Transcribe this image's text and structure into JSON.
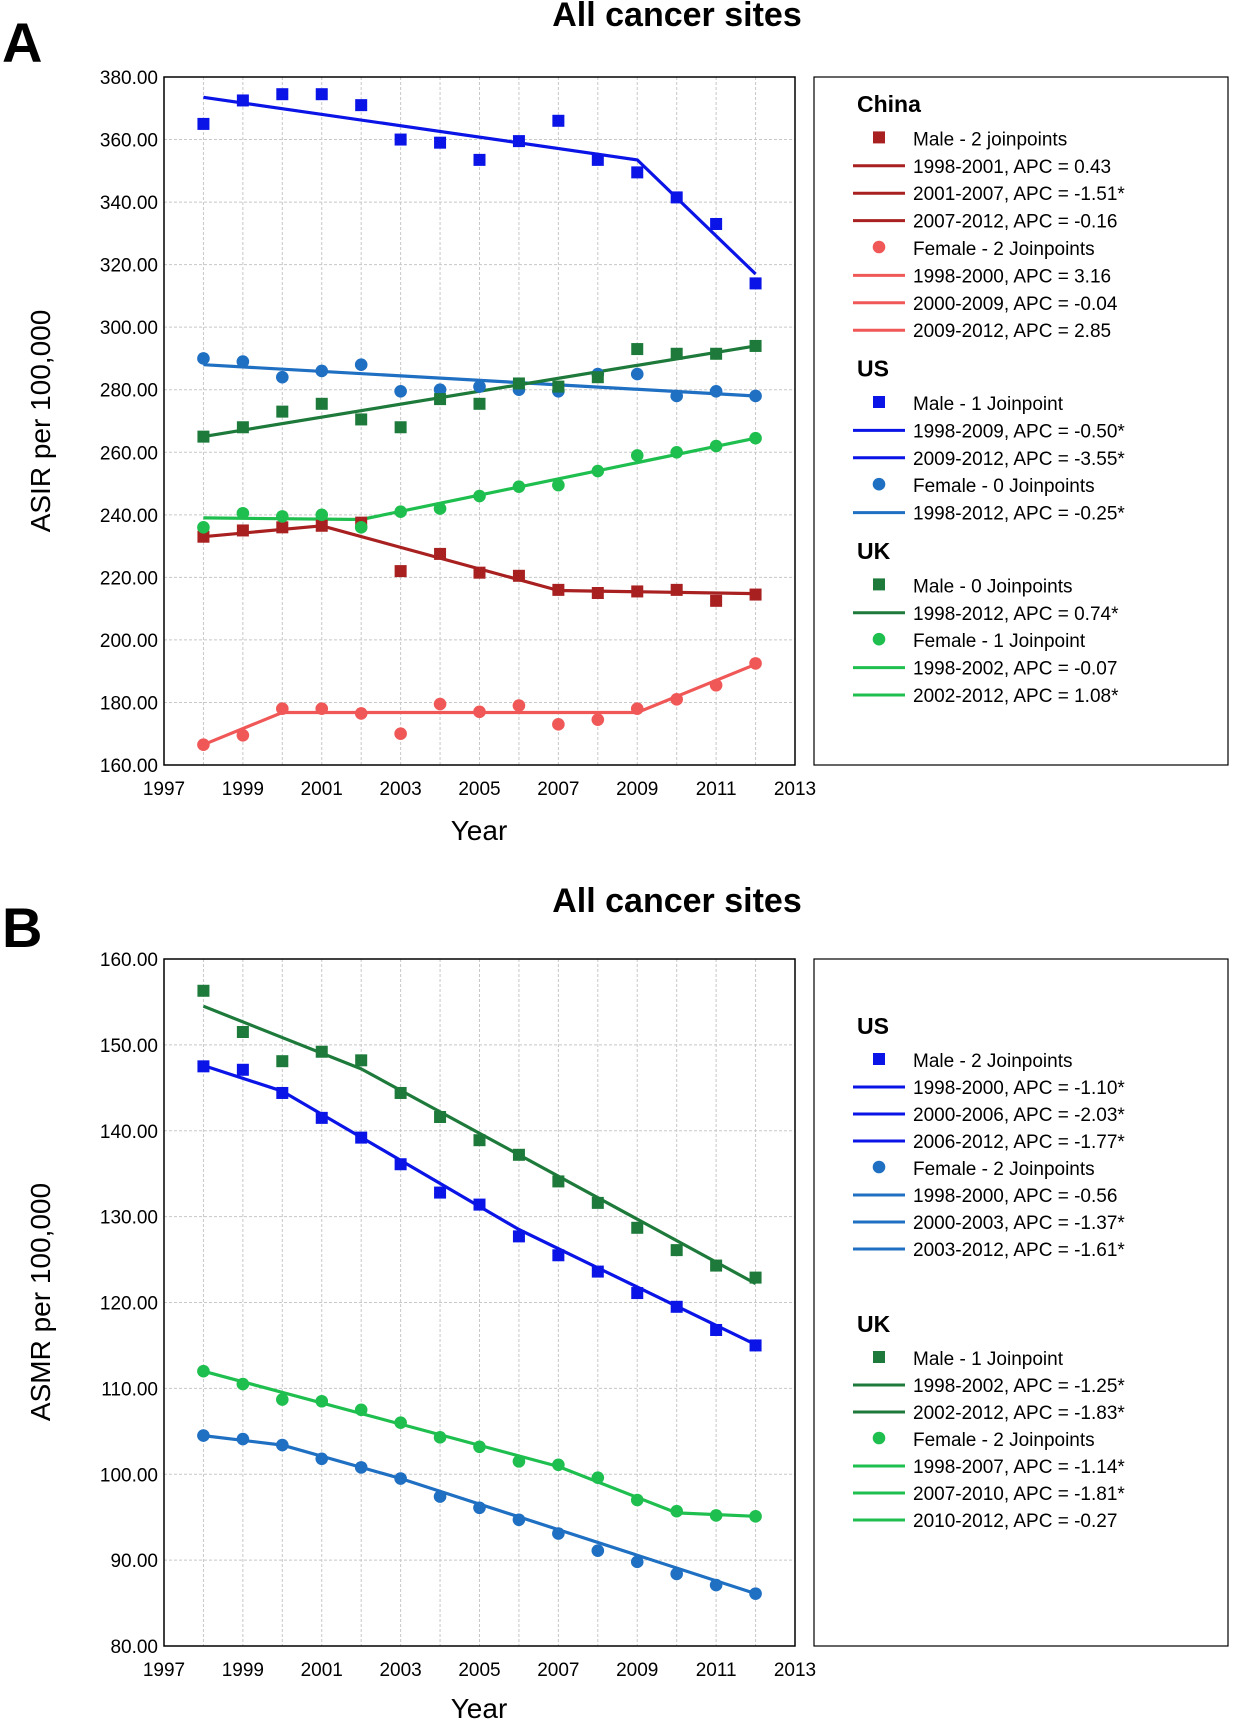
{
  "colors": {
    "china_male": "#a82020",
    "china_female": "#f05858",
    "us_male": "#0a14e6",
    "us_female": "#1f6fc2",
    "uk_male": "#1d7a3a",
    "uk_female": "#1fbf4f",
    "grid": "#c8c8c8"
  },
  "chart_data": [
    {
      "panel": "A",
      "type": "scatter",
      "title": "All cancer sites",
      "xlabel": "Year",
      "ylabel": "ASIR per 100,000",
      "xlim": [
        1997,
        2013
      ],
      "ylim": [
        160,
        380
      ],
      "x_ticks": [
        "1997",
        "1999",
        "2001",
        "2003",
        "2005",
        "2007",
        "2009",
        "2011",
        "2013"
      ],
      "y_ticks": [
        "160.00",
        "180.00",
        "200.00",
        "220.00",
        "240.00",
        "260.00",
        "280.00",
        "300.00",
        "320.00",
        "340.00",
        "360.00",
        "380.00"
      ],
      "grid": true,
      "legend_placement": "right",
      "x": [
        1998,
        1999,
        2000,
        2001,
        2002,
        2003,
        2004,
        2005,
        2006,
        2007,
        2008,
        2009,
        2010,
        2011,
        2012
      ],
      "series": [
        {
          "key": "china_male",
          "marker": "square",
          "values": [
            233,
            235,
            236,
            236.5,
            237.5,
            222,
            227.5,
            221.5,
            220.5,
            216,
            215,
            215.5,
            216,
            212.5,
            214.5
          ],
          "fit": [
            [
              1998,
              233
            ],
            [
              2001,
              236.5
            ],
            [
              2007,
              215.8
            ],
            [
              2012,
              214.8
            ]
          ]
        },
        {
          "key": "china_female",
          "marker": "circle",
          "values": [
            166.5,
            169.5,
            178,
            178,
            176.5,
            170,
            179.5,
            177,
            179,
            173,
            174.5,
            178,
            181,
            185.5,
            192.5
          ],
          "fit": [
            [
              1998,
              166.5
            ],
            [
              2000,
              176.8
            ],
            [
              2009,
              176.8
            ],
            [
              2012,
              192.2
            ]
          ]
        },
        {
          "key": "us_male",
          "marker": "square",
          "values": [
            365,
            372.5,
            374.5,
            374.5,
            371,
            360,
            359,
            353.5,
            359.5,
            366,
            353.5,
            349.5,
            341.5,
            333,
            314
          ],
          "fit": [
            [
              1998,
              373.5
            ],
            [
              2009,
              353.5
            ],
            [
              2012,
              317
            ]
          ]
        },
        {
          "key": "us_female",
          "marker": "circle",
          "values": [
            290,
            289,
            284,
            286,
            288,
            279.5,
            280,
            281,
            280,
            279.5,
            285,
            285,
            278,
            279.5,
            278
          ],
          "fit": [
            [
              1998,
              288
            ],
            [
              2012,
              278
            ]
          ]
        },
        {
          "key": "uk_male",
          "marker": "square",
          "values": [
            265,
            268,
            273,
            275.5,
            270.5,
            268,
            277,
            275.5,
            282,
            281,
            284,
            293,
            291.5,
            291.5,
            294
          ],
          "fit": [
            [
              1998,
              265
            ],
            [
              2012,
              294
            ]
          ]
        },
        {
          "key": "uk_female",
          "marker": "circle",
          "values": [
            236,
            240.5,
            239.5,
            240,
            236,
            241,
            242,
            246,
            249,
            249.5,
            254,
            259,
            260,
            262,
            264.5
          ],
          "fit": [
            [
              1998,
              239
            ],
            [
              2002,
              238.5
            ],
            [
              2012,
              264.5
            ]
          ]
        }
      ],
      "legend": [
        {
          "kind": "head",
          "text": "China"
        },
        {
          "kind": "square",
          "color": "china_male",
          "text": "Male - 2 joinpoints"
        },
        {
          "kind": "line",
          "color": "china_male",
          "text": "1998-2001, APC = 0.43"
        },
        {
          "kind": "line",
          "color": "china_male",
          "text": "2001-2007, APC = -1.51*"
        },
        {
          "kind": "line",
          "color": "china_male",
          "text": "2007-2012, APC = -0.16"
        },
        {
          "kind": "circle",
          "color": "china_female",
          "text": "Female - 2 Joinpoints"
        },
        {
          "kind": "line",
          "color": "china_female",
          "text": "1998-2000, APC = 3.16"
        },
        {
          "kind": "line",
          "color": "china_female",
          "text": "2000-2009, APC = -0.04"
        },
        {
          "kind": "line",
          "color": "china_female",
          "text": "2009-2012, APC = 2.85"
        },
        {
          "kind": "head",
          "text": "US"
        },
        {
          "kind": "square",
          "color": "us_male",
          "text": "Male - 1 Joinpoint"
        },
        {
          "kind": "line",
          "color": "us_male",
          "text": "1998-2009, APC = -0.50*"
        },
        {
          "kind": "line",
          "color": "us_male",
          "text": "2009-2012, APC = -3.55*"
        },
        {
          "kind": "circle",
          "color": "us_female",
          "text": "Female - 0 Joinpoints"
        },
        {
          "kind": "line",
          "color": "us_female",
          "text": "1998-2012, APC = -0.25*"
        },
        {
          "kind": "head",
          "text": "UK"
        },
        {
          "kind": "square",
          "color": "uk_male",
          "text": "Male - 0 Joinpoints"
        },
        {
          "kind": "line",
          "color": "uk_male",
          "text": "1998-2012, APC = 0.74*"
        },
        {
          "kind": "circle",
          "color": "uk_female",
          "text": "Female - 1 Joinpoint"
        },
        {
          "kind": "line",
          "color": "uk_female",
          "text": "1998-2002, APC = -0.07"
        },
        {
          "kind": "line",
          "color": "uk_female",
          "text": "2002-2012, APC = 1.08*"
        }
      ]
    },
    {
      "panel": "B",
      "type": "scatter",
      "title": "All cancer sites",
      "xlabel": "Year",
      "ylabel": "ASMR per 100,000",
      "xlim": [
        1997,
        2013
      ],
      "ylim": [
        80,
        160
      ],
      "x_ticks": [
        "1997",
        "1999",
        "2001",
        "2003",
        "2005",
        "2007",
        "2009",
        "2011",
        "2013"
      ],
      "y_ticks": [
        "80.00",
        "90.00",
        "100.00",
        "110.00",
        "120.00",
        "130.00",
        "140.00",
        "150.00",
        "160.00"
      ],
      "grid": true,
      "legend_placement": "right",
      "x": [
        1998,
        1999,
        2000,
        2001,
        2002,
        2003,
        2004,
        2005,
        2006,
        2007,
        2008,
        2009,
        2010,
        2011,
        2012
      ],
      "series": [
        {
          "key": "uk_male",
          "marker": "square",
          "values": [
            156.3,
            151.5,
            148.1,
            149.2,
            148.2,
            144.4,
            141.6,
            138.9,
            137.2,
            134.1,
            131.6,
            128.7,
            126.1,
            124.3,
            122.9
          ],
          "fit": [
            [
              1998,
              154.5
            ],
            [
              2002,
              147.2
            ],
            [
              2012,
              122.2
            ]
          ]
        },
        {
          "key": "us_male",
          "marker": "square",
          "values": [
            147.5,
            147.1,
            144.4,
            141.5,
            139.2,
            136.1,
            132.8,
            131.4,
            127.7,
            125.5,
            123.6,
            121.1,
            119.5,
            116.8,
            115
          ],
          "fit": [
            [
              1998,
              147.6
            ],
            [
              2000,
              144.6
            ],
            [
              2006,
              128.5
            ],
            [
              2012,
              115.1
            ]
          ]
        },
        {
          "key": "uk_female",
          "marker": "circle",
          "values": [
            112,
            110.5,
            108.7,
            108.5,
            107.5,
            106,
            104.3,
            103.2,
            101.5,
            101.1,
            99.6,
            97,
            95.7,
            95.2,
            95.1
          ],
          "fit": [
            [
              1998,
              112
            ],
            [
              2007,
              100.9
            ],
            [
              2010,
              95.5
            ],
            [
              2012,
              95.1
            ]
          ]
        },
        {
          "key": "us_female",
          "marker": "circle",
          "values": [
            104.5,
            104.1,
            103.4,
            101.8,
            100.8,
            99.5,
            97.4,
            96.1,
            94.7,
            93.1,
            91.1,
            89.8,
            88.4,
            87.1,
            86.1
          ],
          "fit": [
            [
              1998,
              104.5
            ],
            [
              2000,
              103.4
            ],
            [
              2003,
              99.5
            ],
            [
              2012,
              86.1
            ]
          ]
        }
      ],
      "legend": [
        {
          "kind": "head",
          "text": "US"
        },
        {
          "kind": "square",
          "color": "us_male",
          "text": "Male - 2 Joinpoints"
        },
        {
          "kind": "line",
          "color": "us_male",
          "text": "1998-2000, APC = -1.10*"
        },
        {
          "kind": "line",
          "color": "us_male",
          "text": "2000-2006, APC = -2.03*"
        },
        {
          "kind": "line",
          "color": "us_male",
          "text": "2006-2012, APC = -1.77*"
        },
        {
          "kind": "circle",
          "color": "us_female",
          "text": "Female - 2 Joinpoints"
        },
        {
          "kind": "line",
          "color": "us_female",
          "text": "1998-2000, APC = -0.56"
        },
        {
          "kind": "line",
          "color": "us_female",
          "text": "2000-2003, APC = -1.37*"
        },
        {
          "kind": "line",
          "color": "us_female",
          "text": "2003-2012, APC = -1.61*"
        },
        {
          "kind": "gap"
        },
        {
          "kind": "head",
          "text": "UK"
        },
        {
          "kind": "square",
          "color": "uk_male",
          "text": "Male - 1 Joinpoint"
        },
        {
          "kind": "line",
          "color": "uk_male",
          "text": "1998-2002, APC = -1.25*"
        },
        {
          "kind": "line",
          "color": "uk_male",
          "text": "2002-2012, APC = -1.83*"
        },
        {
          "kind": "circle",
          "color": "uk_female",
          "text": "Female - 2 Joinpoints"
        },
        {
          "kind": "line",
          "color": "uk_female",
          "text": "1998-2007, APC = -1.14*"
        },
        {
          "kind": "line",
          "color": "uk_female",
          "text": "2007-2010, APC = -1.81*"
        },
        {
          "kind": "line",
          "color": "uk_female",
          "text": "2010-2012, APC = -0.27"
        }
      ]
    }
  ]
}
